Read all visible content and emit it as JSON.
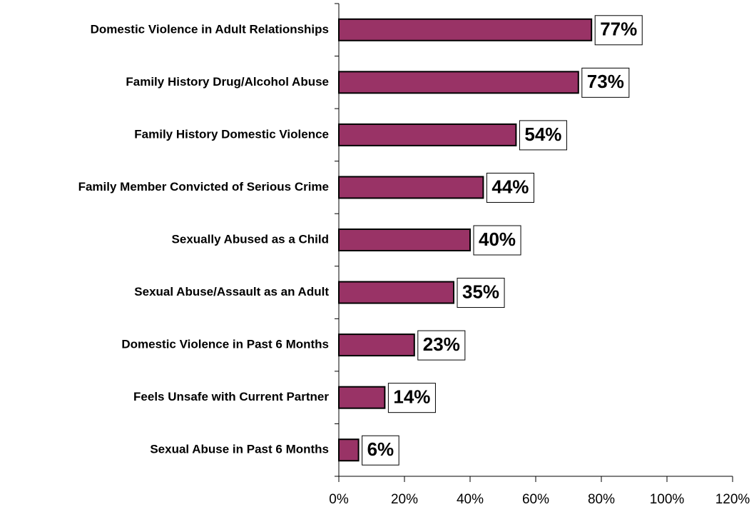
{
  "chart_data": {
    "type": "bar",
    "orientation": "horizontal",
    "categories": [
      "Domestic Violence in Adult Relationships",
      "Family History Drug/Alcohol Abuse",
      "Family History Domestic Violence",
      "Family Member Convicted of Serious Crime",
      "Sexually Abused as a Child",
      "Sexual Abuse/Assault as an Adult",
      "Domestic Violence in Past 6 Months",
      "Feels Unsafe with Current Partner",
      "Sexual Abuse in Past 6 Months"
    ],
    "values": [
      77,
      73,
      54,
      44,
      40,
      35,
      23,
      14,
      6
    ],
    "value_labels": [
      "77%",
      "73%",
      "54%",
      "44%",
      "40%",
      "35%",
      "23%",
      "14%",
      "6%"
    ],
    "color": "#993366",
    "xlim": [
      0,
      120
    ],
    "xticks": [
      {
        "value": 0,
        "label": "0%"
      },
      {
        "value": 20,
        "label": "20%"
      },
      {
        "value": 40,
        "label": "40%"
      },
      {
        "value": 60,
        "label": "60%"
      },
      {
        "value": 80,
        "label": "80%"
      },
      {
        "value": 100,
        "label": "100%"
      },
      {
        "value": 120,
        "label": "120%"
      }
    ],
    "grid": false
  }
}
